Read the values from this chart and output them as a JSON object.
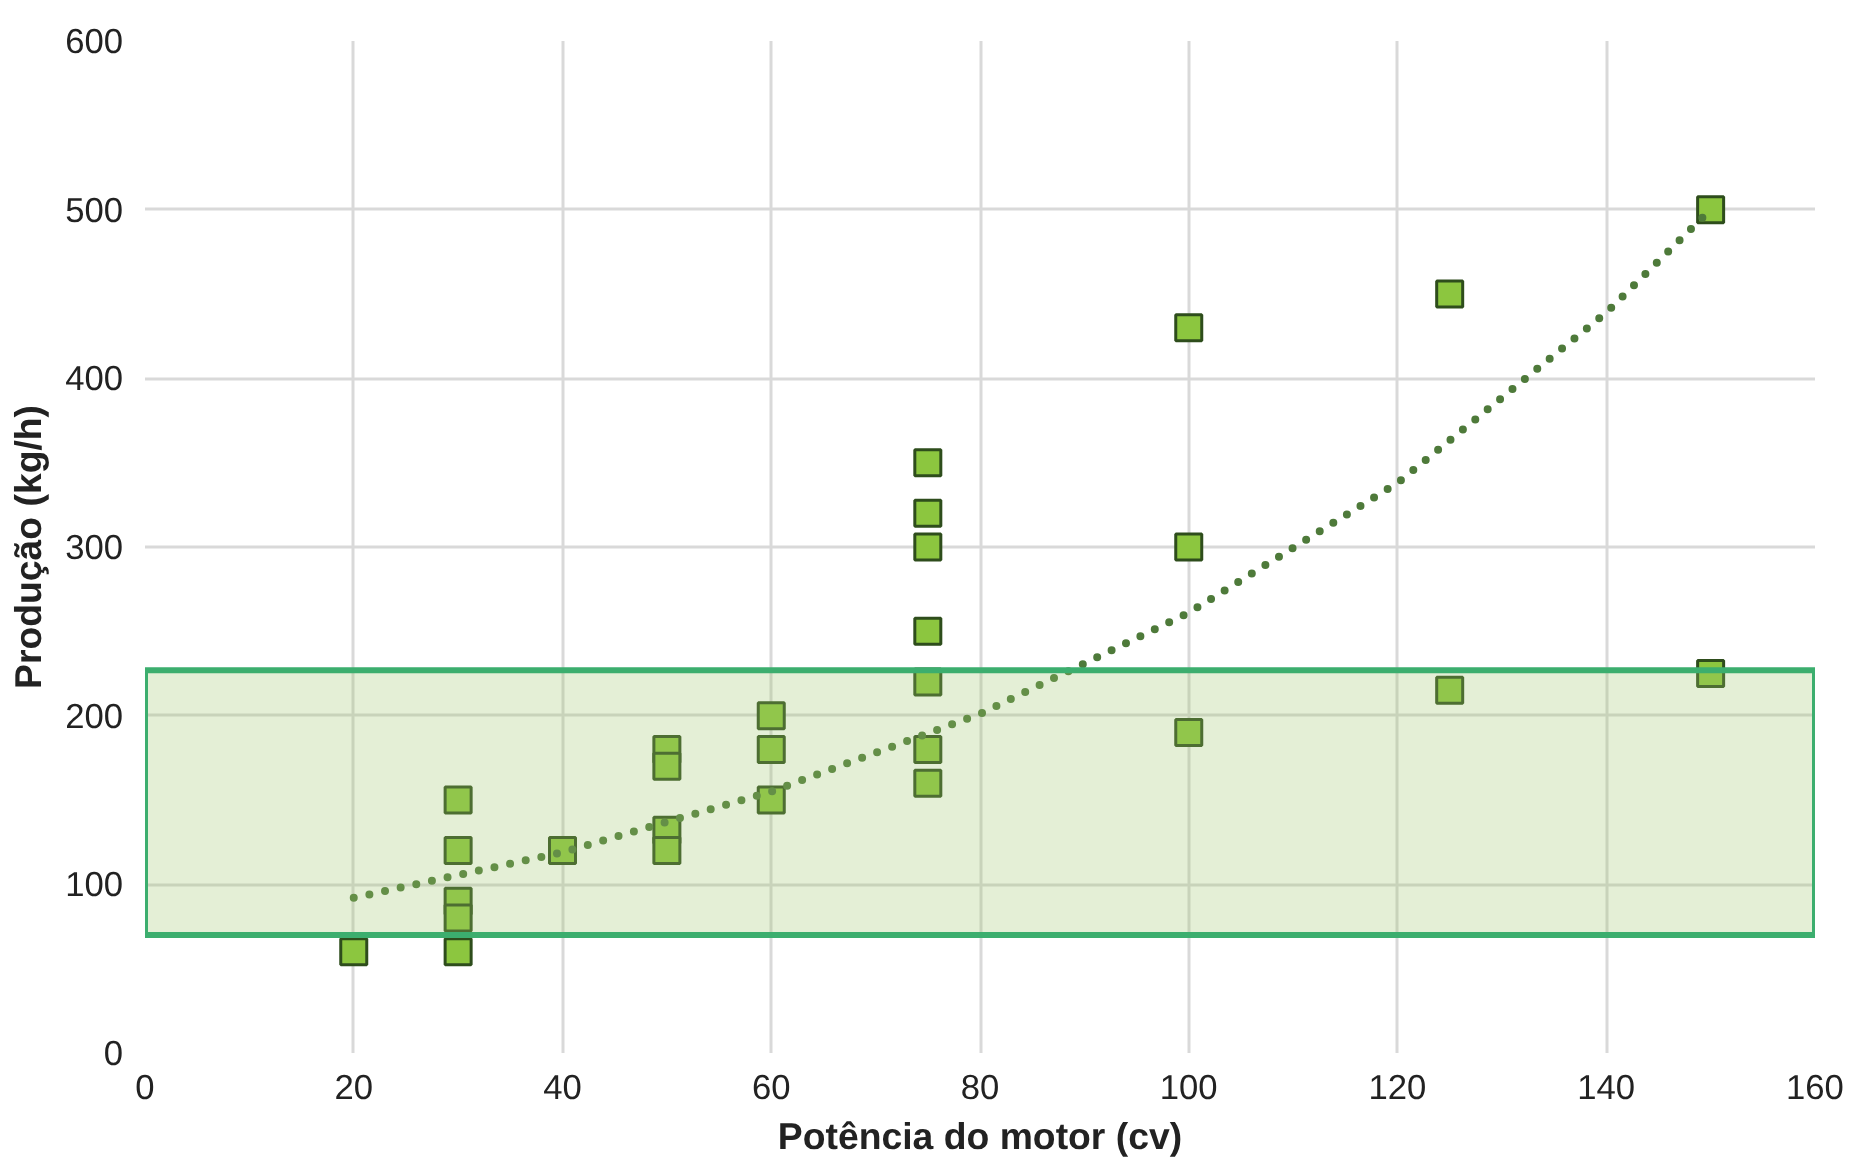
{
  "chart_data": {
    "type": "scatter",
    "xlabel": "Potência do motor (cv)",
    "ylabel": "Produção (kg/h)",
    "xlim": [
      0,
      160
    ],
    "xticks": [
      0,
      20,
      40,
      60,
      80,
      100,
      120,
      140,
      160
    ],
    "ylim": [
      0,
      600
    ],
    "yticks": [
      0,
      100,
      200,
      300,
      400,
      500,
      600
    ],
    "grid": true,
    "marker": "square",
    "bands": [
      {
        "axis": "y",
        "from": 70,
        "to": 227,
        "color": "#3cae6e"
      }
    ],
    "series": [
      {
        "color": "#8cc63f",
        "x": [
          20,
          30,
          30,
          30,
          30,
          30,
          40,
          50,
          50,
          50,
          50,
          60,
          60,
          60,
          75,
          75,
          75,
          75,
          75,
          75,
          75,
          100,
          100,
          100,
          125,
          125,
          150,
          150
        ],
        "values": [
          60,
          150,
          120,
          90,
          80,
          60,
          120,
          180,
          170,
          132,
          120,
          200,
          180,
          150,
          350,
          320,
          300,
          250,
          220,
          180,
          160,
          430,
          300,
          190,
          450,
          215,
          500,
          225
        ]
      },
      {
        "type": "line",
        "color": "#4e7a3a",
        "line_style": "dotted",
        "marker": "none",
        "x": [
          20,
          40,
          60,
          80,
          100,
          120,
          140,
          150
        ],
        "values": [
          92,
          119,
          155,
          201,
          261,
          338,
          439,
          500
        ]
      }
    ]
  }
}
